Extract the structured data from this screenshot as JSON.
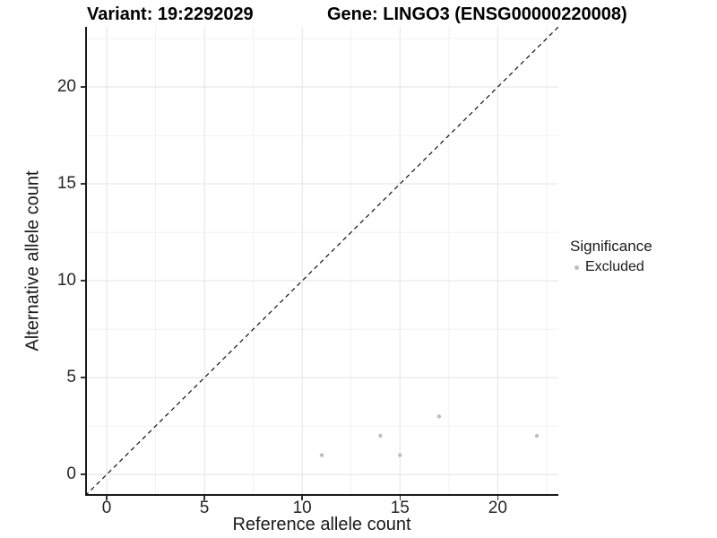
{
  "header": {
    "variant_title": "Variant: 19:2292029",
    "gene_title": "Gene: LINGO3 (ENSG00000220008)"
  },
  "chart_data": {
    "type": "scatter",
    "xlabel": "Reference allele count",
    "ylabel": "Alternative allele count",
    "xlim": [
      -1.1,
      23.1
    ],
    "ylim": [
      -1.1,
      23.1
    ],
    "xticks": [
      0,
      5,
      10,
      15,
      20
    ],
    "yticks": [
      0,
      5,
      10,
      15,
      20
    ],
    "minor_xticks": [
      2.5,
      7.5,
      12.5,
      17.5,
      22.5
    ],
    "minor_yticks": [
      2.5,
      7.5,
      12.5,
      17.5,
      22.5
    ],
    "grid": "major+minor",
    "identity_line": {
      "style": "dashed",
      "color": "#111111",
      "from": -1.1,
      "to": 23.1
    },
    "series": [
      {
        "name": "Excluded",
        "color": "#bebebe",
        "points": [
          {
            "x": 11,
            "y": 1
          },
          {
            "x": 14,
            "y": 2
          },
          {
            "x": 15,
            "y": 1
          },
          {
            "x": 17,
            "y": 3
          },
          {
            "x": 22,
            "y": 2
          }
        ]
      }
    ],
    "legend": {
      "title": "Significance",
      "position": "right",
      "items": [
        {
          "label": "Excluded",
          "color": "#bebebe"
        }
      ]
    }
  },
  "colors": {
    "background": "#ffffff",
    "axis_line": "#1a1a1a",
    "grid_major": "#e3e3e3",
    "grid_minor": "#f1f1f1",
    "tick_mark": "#333333",
    "tick_label": "#262626",
    "point": "#bebebe"
  }
}
